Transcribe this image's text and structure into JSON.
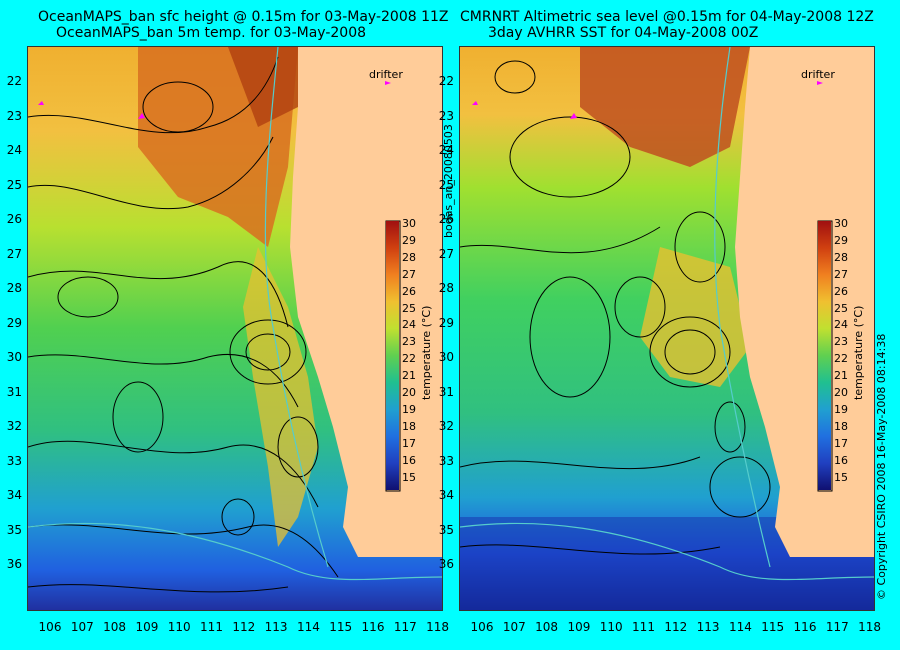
{
  "left_panel": {
    "title_line1": "OceanMAPS_ban sfc height @ 0.15m for 03-May-2008 11Z",
    "title_line2": "OceanMAPS_ban 5m temp. for 03-May-2008",
    "drifter_label": "drifter"
  },
  "right_panel": {
    "title_line1": "CMRNRT Altimetric sea level  @0.15m  for 04-May-2008 12Z",
    "title_line2": "3day AVHRR SST for 04-May-2008 00Z",
    "drifter_label": "drifter"
  },
  "axes": {
    "lat_labels": [
      "22",
      "23",
      "24",
      "25",
      "26",
      "27",
      "28",
      "29",
      "30",
      "31",
      "32",
      "33",
      "34",
      "35",
      "36"
    ],
    "lon_labels": [
      "106",
      "107",
      "108",
      "109",
      "110",
      "111",
      "112",
      "113",
      "114",
      "115",
      "116",
      "117",
      "118"
    ]
  },
  "colorbar": {
    "label": "temperature (°C)",
    "ticks": [
      "30",
      "29",
      "28",
      "27",
      "26",
      "25",
      "24",
      "23",
      "22",
      "21",
      "20",
      "19",
      "18",
      "17",
      "16",
      "15"
    ],
    "range": [
      15,
      30
    ]
  },
  "side_text": {
    "left": "bodas_an_20080503",
    "right": "© Copyright CSIRO 2008   16-May-2008 08:14:38"
  },
  "colors": {
    "background": "#00ffff",
    "land": "#ffcc99",
    "contour": "#000000",
    "drifter": "#ff00ff",
    "bathymetry": "#55cccc"
  }
}
